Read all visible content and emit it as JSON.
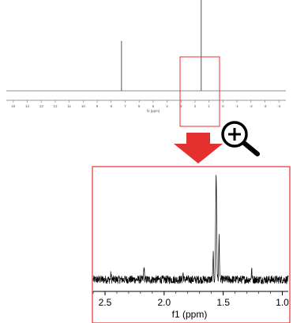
{
  "header": {
    "prefix": "",
    "highlight": ""
  },
  "chart_data": [
    {
      "type": "line",
      "title": "",
      "xlabel": "f1 (ppm)",
      "ylabel": "",
      "xlim": [
        15.5,
        -4.5
      ],
      "x_reversed": true,
      "grid": false,
      "x_ticks": [
        15,
        14,
        13,
        12,
        11,
        10,
        9,
        8,
        7,
        6,
        5,
        4,
        3,
        2,
        1,
        0,
        -1,
        -2,
        -3,
        -4
      ],
      "peaks": [
        {
          "x": 7.26,
          "height": 0.55
        },
        {
          "x": 1.56,
          "height": 1.0
        }
      ],
      "zoom_region": {
        "x_from": 2.6,
        "x_to": 0.9
      },
      "color": "#555555"
    },
    {
      "type": "line",
      "title": "",
      "xlabel": "f1 (ppm)",
      "ylabel": "",
      "xlim": [
        2.6,
        0.95
      ],
      "x_reversed": true,
      "grid": false,
      "x_ticks": [
        2.5,
        2.0,
        1.5,
        1.0
      ],
      "x_tick_labels": [
        "2.5",
        "2.0",
        "1.5",
        "1.0"
      ],
      "peaks": [
        {
          "x": 1.56,
          "height": 1.0
        },
        {
          "x": 1.535,
          "height": 0.42
        },
        {
          "x": 1.585,
          "height": 0.25
        },
        {
          "x": 2.17,
          "height": 0.12
        },
        {
          "x": 1.26,
          "height": 0.1
        },
        {
          "x": 1.84,
          "height": 0.06
        },
        {
          "x": 2.45,
          "height": 0.05
        }
      ],
      "noise_level": 0.04,
      "color": "#000000"
    }
  ],
  "annotations": {
    "arrow_color": "#e53030",
    "frame_color": "#e53030",
    "zoom_icon": "zoom-in-icon"
  }
}
